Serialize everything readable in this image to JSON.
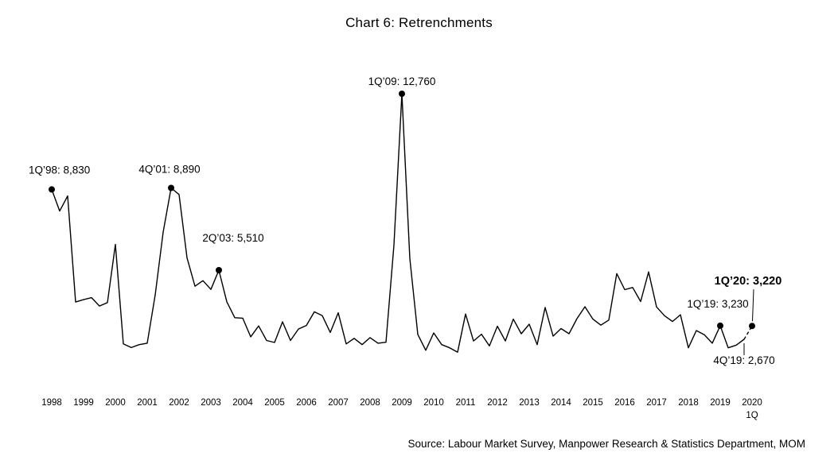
{
  "chart_data": {
    "type": "line",
    "title": "Chart 6: Retrenchments",
    "source": "Source: Labour Market Survey, Manpower Research & Statistics Department, MOM",
    "line_color": "#000000",
    "background": "#ffffff",
    "grid": false,
    "ylim": [
      0,
      13500
    ],
    "x_axis": {
      "unit": "quarterly",
      "start": "1Q 1998",
      "end": "1Q 2020",
      "years": [
        "1998",
        "1999",
        "2000",
        "2001",
        "2002",
        "2003",
        "2004",
        "2005",
        "2006",
        "2007",
        "2008",
        "2009",
        "2010",
        "2011",
        "2012",
        "2013",
        "2014",
        "2015",
        "2016",
        "2017",
        "2018",
        "2019",
        "2020"
      ],
      "end_note": "1Q"
    },
    "dashed_segment": "4Q’19 to 1Q’20 drawn dashed",
    "values": [
      8830,
      7940,
      8560,
      4200,
      4300,
      4380,
      4040,
      4180,
      6570,
      2480,
      2330,
      2450,
      2510,
      4490,
      7070,
      8890,
      8620,
      6020,
      4850,
      5080,
      4720,
      5510,
      4210,
      3560,
      3540,
      2770,
      3220,
      2620,
      2540,
      3390,
      2620,
      3090,
      3240,
      3800,
      3640,
      2950,
      3760,
      2480,
      2710,
      2450,
      2740,
      2510,
      2550,
      6540,
      12760,
      5980,
      2870,
      2220,
      2930,
      2450,
      2320,
      2140,
      3710,
      2600,
      2880,
      2400,
      3210,
      2600,
      3500,
      2900,
      3290,
      2450,
      3980,
      2800,
      3110,
      2900,
      3520,
      4010,
      3500,
      3250,
      3460,
      5370,
      4710,
      4800,
      4220,
      5440,
      4000,
      3640,
      3400,
      3680,
      2320,
      3030,
      2860,
      2510,
      3230,
      2320,
      2430,
      2670,
      3220
    ],
    "annotations": [
      {
        "label": "1Q’98: 8,830",
        "quarter": 0,
        "period": "1Q 1998",
        "value": 8830,
        "bold": false
      },
      {
        "label": "4Q’01: 8,890",
        "quarter": 15,
        "period": "4Q 2001",
        "value": 8890,
        "bold": false
      },
      {
        "label": "2Q’03: 5,510",
        "quarter": 21,
        "period": "2Q 2003",
        "value": 5510,
        "bold": false
      },
      {
        "label": "1Q’09: 12,760",
        "quarter": 44,
        "period": "1Q 2009",
        "value": 12760,
        "bold": false
      },
      {
        "label": "1Q’19: 3,230",
        "quarter": 84,
        "period": "1Q 2019",
        "value": 3230,
        "bold": false
      },
      {
        "label": "4Q’19: 2,670",
        "quarter": 87,
        "period": "4Q 2019",
        "value": 2670,
        "bold": false
      },
      {
        "label": "1Q’20: 3,220",
        "quarter": 88,
        "period": "1Q 2020",
        "value": 3220,
        "bold": true
      }
    ]
  }
}
